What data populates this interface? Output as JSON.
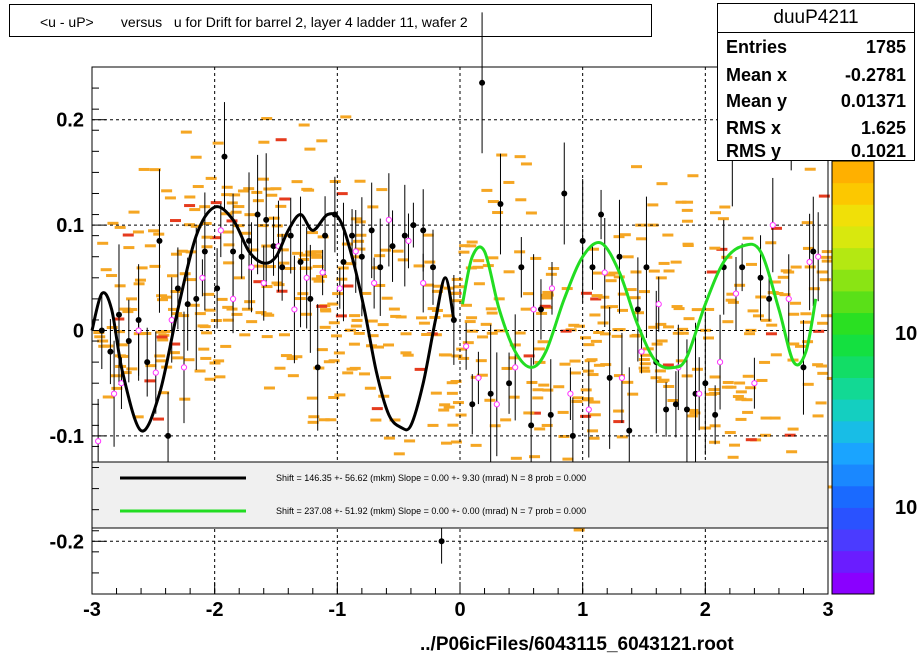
{
  "title": "<u - uP>       versus   u for Drift for barrel 2, layer 4 ladder 11, wafer 2",
  "stats": {
    "name": "duuP4211",
    "rows": [
      {
        "label": "Entries",
        "value": "1785"
      },
      {
        "label": "Mean x",
        "value": "-0.2781"
      },
      {
        "label": "Mean y",
        "value": "0.01371"
      },
      {
        "label": "RMS x",
        "value": "1.625"
      },
      {
        "label": "RMS y",
        "value": "0.1021"
      }
    ]
  },
  "footer": "../P06icFiles/6043115_6043121.root",
  "colors": {
    "fit1": "#000000",
    "fit2": "#22dd22",
    "hist_cells": "#f5a623",
    "hist_hot": "#e53b1e",
    "marker_open": "#ff33ff"
  },
  "chart_data": {
    "type": "scatter",
    "xlim": [
      -3,
      3
    ],
    "ylim": [
      -0.25,
      0.25
    ],
    "x_ticks": [
      -3,
      -2,
      -1,
      0,
      1,
      2,
      3
    ],
    "y_ticks": [
      -0.2,
      -0.1,
      0,
      0.1,
      0.2
    ],
    "x_tick_labels": [
      "-3",
      "-2",
      "-1",
      "0",
      "1",
      "2",
      "3"
    ],
    "y_tick_labels": [
      "-0.2",
      "-0.1",
      "0",
      "0.1",
      "0.2"
    ],
    "grid": true,
    "color_scale_labels": [
      "10",
      "10"
    ],
    "fits": [
      {
        "label": "Shift =   146.35 +- 56.62 (mkm) Slope =     0.00 +- 9.30 (mrad)  N = 8 prob = 0.000",
        "x": [
          -3.0,
          -2.92,
          -2.84,
          -2.75,
          -2.6,
          -2.45,
          -2.3,
          -2.15,
          -2.0,
          -1.85,
          -1.72,
          -1.6,
          -1.5,
          -1.4,
          -1.3,
          -1.2,
          -1.08,
          -0.98,
          -0.88,
          -0.78,
          -0.68,
          -0.58,
          -0.48,
          -0.4,
          -0.3,
          -0.2,
          -0.12,
          -0.05
        ],
        "y": [
          0.0,
          0.035,
          0.02,
          -0.04,
          -0.095,
          -0.06,
          0.02,
          0.09,
          0.117,
          0.105,
          0.075,
          0.064,
          0.07,
          0.095,
          0.11,
          0.095,
          0.11,
          0.105,
          0.07,
          0.02,
          -0.04,
          -0.08,
          -0.092,
          -0.09,
          -0.05,
          0.01,
          0.05,
          0.01
        ]
      },
      {
        "label": "Shift =   237.08 +- 51.92 (mkm) Slope =     0.00 +- 0.00 (mrad)  N = 7 prob = 0.000",
        "x": [
          0.02,
          0.1,
          0.2,
          0.32,
          0.45,
          0.58,
          0.7,
          0.85,
          1.0,
          1.15,
          1.3,
          1.45,
          1.6,
          1.75,
          1.85,
          2.0,
          2.15,
          2.3,
          2.45,
          2.6,
          2.72,
          2.82,
          2.9
        ],
        "y": [
          0.025,
          0.07,
          0.075,
          0.02,
          -0.02,
          -0.035,
          -0.02,
          0.03,
          0.07,
          0.083,
          0.055,
          0.005,
          -0.03,
          -0.035,
          -0.025,
          0.025,
          0.065,
          0.08,
          0.075,
          0.02,
          -0.03,
          -0.02,
          0.03
        ]
      }
    ],
    "points_filled": [
      {
        "x": -2.92,
        "y": 0.0
      },
      {
        "x": -2.85,
        "y": -0.02
      },
      {
        "x": -2.78,
        "y": 0.015
      },
      {
        "x": -2.7,
        "y": -0.01
      },
      {
        "x": -2.62,
        "y": 0.01
      },
      {
        "x": -2.55,
        "y": -0.03
      },
      {
        "x": -2.45,
        "y": 0.085
      },
      {
        "x": -2.38,
        "y": -0.1
      },
      {
        "x": -2.3,
        "y": 0.04
      },
      {
        "x": -2.22,
        "y": 0.025
      },
      {
        "x": -2.15,
        "y": 0.03
      },
      {
        "x": -2.08,
        "y": 0.075
      },
      {
        "x": -1.98,
        "y": 0.04
      },
      {
        "x": -1.92,
        "y": 0.165
      },
      {
        "x": -1.85,
        "y": 0.075
      },
      {
        "x": -1.78,
        "y": 0.07
      },
      {
        "x": -1.72,
        "y": 0.085
      },
      {
        "x": -1.65,
        "y": 0.11
      },
      {
        "x": -1.58,
        "y": 0.105
      },
      {
        "x": -1.52,
        "y": 0.08
      },
      {
        "x": -1.45,
        "y": 0.06
      },
      {
        "x": -1.38,
        "y": 0.09
      },
      {
        "x": -1.3,
        "y": 0.065
      },
      {
        "x": -1.22,
        "y": 0.03
      },
      {
        "x": -1.16,
        "y": -0.035
      },
      {
        "x": -1.1,
        "y": 0.09
      },
      {
        "x": -1.02,
        "y": 0.11
      },
      {
        "x": -0.95,
        "y": 0.065
      },
      {
        "x": -0.88,
        "y": 0.09
      },
      {
        "x": -0.8,
        "y": 0.07
      },
      {
        "x": -0.72,
        "y": 0.095
      },
      {
        "x": -0.65,
        "y": 0.06
      },
      {
        "x": -0.55,
        "y": 0.08
      },
      {
        "x": -0.45,
        "y": 0.09
      },
      {
        "x": -0.38,
        "y": 0.1
      },
      {
        "x": -0.3,
        "y": 0.095
      },
      {
        "x": -0.22,
        "y": 0.06
      },
      {
        "x": -0.15,
        "y": -0.2
      },
      {
        "x": -0.05,
        "y": 0.01
      },
      {
        "x": 0.1,
        "y": -0.07
      },
      {
        "x": 0.18,
        "y": 0.235
      },
      {
        "x": 0.25,
        "y": -0.06
      },
      {
        "x": 0.33,
        "y": 0.12
      },
      {
        "x": 0.4,
        "y": -0.05
      },
      {
        "x": 0.5,
        "y": 0.06
      },
      {
        "x": 0.58,
        "y": -0.09
      },
      {
        "x": 0.66,
        "y": 0.02
      },
      {
        "x": 0.74,
        "y": -0.08
      },
      {
        "x": 0.85,
        "y": 0.13
      },
      {
        "x": 0.92,
        "y": -0.1
      },
      {
        "x": 1.0,
        "y": 0.085
      },
      {
        "x": 1.08,
        "y": 0.06
      },
      {
        "x": 1.15,
        "y": 0.11
      },
      {
        "x": 1.22,
        "y": -0.045
      },
      {
        "x": 1.3,
        "y": 0.07
      },
      {
        "x": 1.38,
        "y": -0.095
      },
      {
        "x": 1.45,
        "y": 0.02
      },
      {
        "x": 1.52,
        "y": 0.06
      },
      {
        "x": 1.6,
        "y": -0.03
      },
      {
        "x": 1.68,
        "y": -0.075
      },
      {
        "x": 1.76,
        "y": -0.07
      },
      {
        "x": 1.85,
        "y": -0.075
      },
      {
        "x": 1.92,
        "y": -0.06
      },
      {
        "x": 2.0,
        "y": -0.05
      },
      {
        "x": 2.08,
        "y": -0.08
      },
      {
        "x": 2.15,
        "y": 0.06
      },
      {
        "x": 2.22,
        "y": 0.165
      },
      {
        "x": 2.3,
        "y": 0.06
      },
      {
        "x": 2.38,
        "y": 0.245
      },
      {
        "x": 2.45,
        "y": 0.05
      },
      {
        "x": 2.52,
        "y": 0.03
      },
      {
        "x": 2.6,
        "y": 0.21
      },
      {
        "x": 2.7,
        "y": 0.22
      },
      {
        "x": 2.8,
        "y": -0.035
      },
      {
        "x": 2.88,
        "y": 0.075
      }
    ],
    "points_open": [
      {
        "x": -2.95,
        "y": -0.105
      },
      {
        "x": -2.82,
        "y": -0.06
      },
      {
        "x": -2.76,
        "y": -0.05
      },
      {
        "x": -2.62,
        "y": 0.0
      },
      {
        "x": -2.48,
        "y": -0.04
      },
      {
        "x": -2.35,
        "y": 0.01
      },
      {
        "x": -2.25,
        "y": -0.035
      },
      {
        "x": -2.1,
        "y": 0.05
      },
      {
        "x": -1.95,
        "y": 0.095
      },
      {
        "x": -1.85,
        "y": 0.03
      },
      {
        "x": -1.7,
        "y": 0.06
      },
      {
        "x": -1.6,
        "y": 0.045
      },
      {
        "x": -1.48,
        "y": 0.08
      },
      {
        "x": -1.35,
        "y": 0.02
      },
      {
        "x": -1.25,
        "y": 0.05
      },
      {
        "x": -1.12,
        "y": 0.055
      },
      {
        "x": -0.98,
        "y": 0.04
      },
      {
        "x": -0.85,
        "y": 0.075
      },
      {
        "x": -0.7,
        "y": 0.045
      },
      {
        "x": -0.58,
        "y": 0.105
      },
      {
        "x": -0.42,
        "y": 0.085
      },
      {
        "x": -0.3,
        "y": 0.045
      },
      {
        "x": 0.05,
        "y": -0.015
      },
      {
        "x": 0.15,
        "y": -0.045
      },
      {
        "x": 0.3,
        "y": -0.07
      },
      {
        "x": 0.45,
        "y": -0.035
      },
      {
        "x": 0.6,
        "y": 0.02
      },
      {
        "x": 0.75,
        "y": 0.04
      },
      {
        "x": 0.9,
        "y": -0.06
      },
      {
        "x": 1.05,
        "y": -0.075
      },
      {
        "x": 1.18,
        "y": 0.055
      },
      {
        "x": 1.32,
        "y": -0.045
      },
      {
        "x": 1.48,
        "y": -0.02
      },
      {
        "x": 1.62,
        "y": 0.025
      },
      {
        "x": 1.78,
        "y": -0.035
      },
      {
        "x": 1.95,
        "y": -0.06
      },
      {
        "x": 2.12,
        "y": -0.03
      },
      {
        "x": 2.25,
        "y": 0.035
      },
      {
        "x": 2.4,
        "y": -0.05
      },
      {
        "x": 2.55,
        "y": 0.1
      },
      {
        "x": 2.68,
        "y": 0.03
      },
      {
        "x": 2.85,
        "y": 0.065
      },
      {
        "x": 2.92,
        "y": 0.07
      }
    ]
  }
}
